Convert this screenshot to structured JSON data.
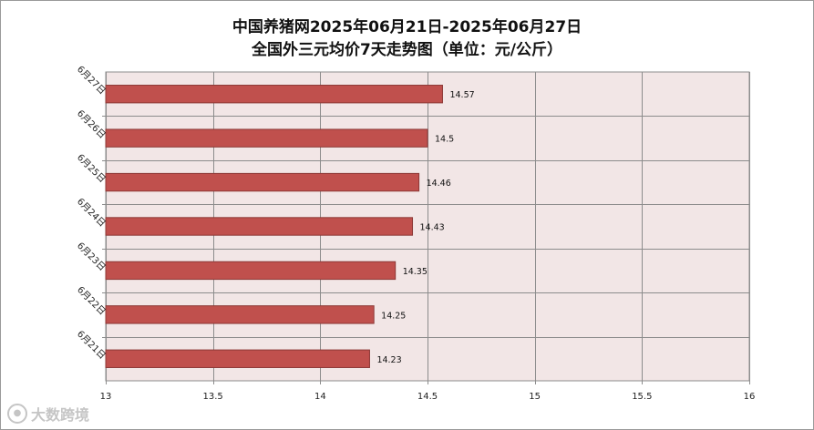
{
  "chart_data": {
    "type": "bar",
    "orientation": "horizontal",
    "title": "中国养猪网2025年06月21日-2025年06月27日",
    "subtitle": "全国外三元均价7天走势图（单位：元/公斤）",
    "categories": [
      "6月27日",
      "6月26日",
      "6月25日",
      "6月24日",
      "6月23日",
      "6月22日",
      "6月21日"
    ],
    "values": [
      14.57,
      14.5,
      14.46,
      14.43,
      14.35,
      14.25,
      14.23
    ],
    "data_labels": [
      "14.57",
      "14.5",
      "14.46",
      "14.43",
      "14.35",
      "14.25",
      "14.23"
    ],
    "x_ticks": [
      "13",
      "13.5",
      "14",
      "14.5",
      "15",
      "15.5",
      "16"
    ],
    "xlim": [
      13,
      16
    ],
    "grid": true,
    "bar_color": "#c0504d",
    "plot_background": "#f2e6e6",
    "legend": "none"
  },
  "watermark": "大数跨境"
}
